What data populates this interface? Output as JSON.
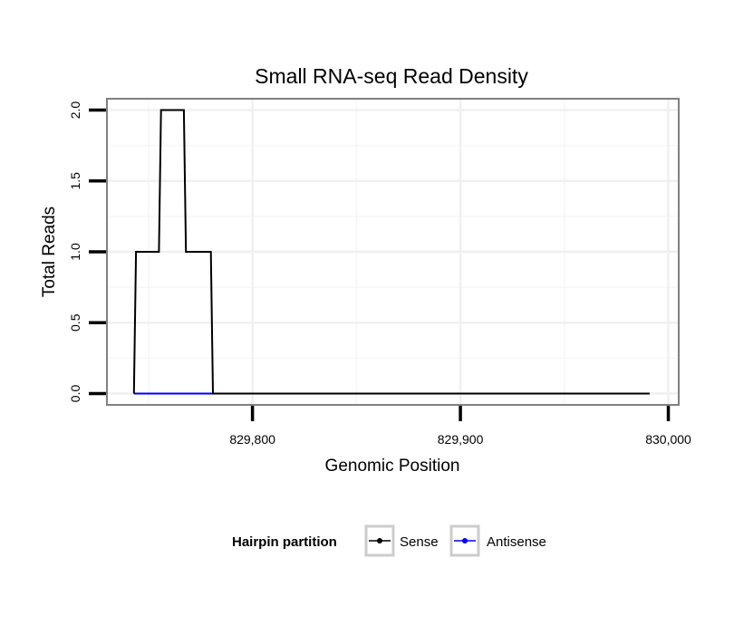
{
  "chart_data": {
    "type": "line",
    "title": "Small RNA-seq Read Density",
    "xlabel": "Genomic Position",
    "ylabel": "Total Reads",
    "xlim": [
      829730,
      830005
    ],
    "ylim": [
      -0.08,
      2.08
    ],
    "x_ticks": [
      829800,
      829900,
      830000
    ],
    "x_tick_labels": [
      "829,800",
      "829,900",
      "830,000"
    ],
    "y_ticks": [
      0.0,
      0.5,
      1.0,
      1.5,
      2.0
    ],
    "y_tick_labels": [
      "0.0",
      "0.5",
      "1.0",
      "1.5",
      "2.0"
    ],
    "grid": true,
    "legend_position": "bottom",
    "legend_title": "Hairpin partition",
    "series": [
      {
        "name": "Sense",
        "color": "#000000",
        "x": [
          829743,
          829744,
          829755,
          829756,
          829767,
          829768,
          829780,
          829781,
          829991
        ],
        "y": [
          0,
          1,
          1,
          2,
          2,
          1,
          1,
          0,
          0
        ]
      },
      {
        "name": "Antisense",
        "color": "#0000ff",
        "x": [
          829743,
          829781
        ],
        "y": [
          0,
          0
        ]
      }
    ]
  }
}
